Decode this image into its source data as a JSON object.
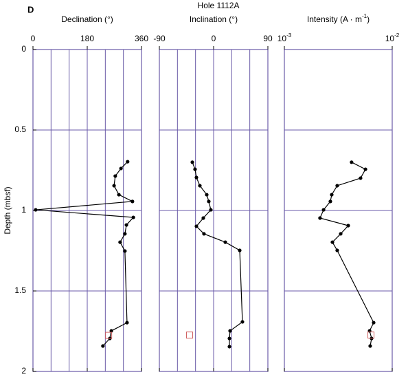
{
  "panel_label": "D",
  "title": "Hole 1112A",
  "chart_data": [
    {
      "type": "line",
      "x_label": "Declination  (°)",
      "xlim": [
        0,
        360
      ],
      "xticks": [
        0,
        180,
        360
      ],
      "xgrid": [
        60,
        120,
        180,
        240,
        300
      ],
      "y_label": "Depth (mbsf)",
      "ylim": [
        0,
        2
      ],
      "yticks": [
        0,
        0.5,
        1,
        1.5,
        2
      ],
      "ygrid": [
        0.5,
        1,
        1.5
      ],
      "color": "#000000",
      "series": [
        {
          "depth": [
            0.697,
            0.739,
            0.786,
            0.846,
            0.902,
            0.944,
            0.996,
            1.043,
            1.09,
            1.145,
            1.197,
            1.252,
            1.697,
            1.748,
            1.795,
            1.842
          ],
          "values": [
            314,
            292,
            273,
            269,
            285,
            330,
            9,
            333,
            310,
            305,
            289,
            305,
            312,
            260,
            255,
            232
          ]
        }
      ],
      "discrete_sample": {
        "depth": 1.776,
        "value": 251,
        "color": "#d06060"
      }
    },
    {
      "type": "line",
      "x_label": "Inclination  (°)",
      "xlim": [
        -90,
        90
      ],
      "xticks": [
        -90,
        0,
        90
      ],
      "xgrid": [
        -60,
        -30,
        0,
        30,
        60
      ],
      "ylim": [
        0,
        2
      ],
      "ygrid": [
        0.5,
        1,
        1.5
      ],
      "color": "#000000",
      "series": [
        {
          "depth": [
            0.7,
            0.744,
            0.795,
            0.846,
            0.902,
            0.944,
            0.996,
            1.047,
            1.098,
            1.145,
            1.197,
            1.248,
            1.692,
            1.748,
            1.795,
            1.846
          ],
          "values": [
            -35.3,
            -30.8,
            -28.5,
            -22.8,
            -11.4,
            -8,
            -4.6,
            -17.1,
            -28.5,
            -16,
            19.4,
            43.3,
            47.8,
            27.3,
            26.2,
            26.2
          ]
        }
      ],
      "discrete_sample": {
        "depth": 1.774,
        "value": -39.9,
        "color": "#d06060"
      }
    },
    {
      "type": "line",
      "x_label": [
        "Intensity (A · m",
        "-1",
        ")"
      ],
      "xscale": "log",
      "xlim": [
        0.001,
        0.01
      ],
      "xticks": [
        {
          "value": 0.001,
          "label": "10",
          "exponent": "-3"
        },
        {
          "value": 0.01,
          "label": "10",
          "exponent": "-2"
        }
      ],
      "ylim": [
        0,
        2
      ],
      "ygrid": [
        0.5,
        1,
        1.5
      ],
      "color": "#000000",
      "series": [
        {
          "depth": [
            0.7,
            0.744,
            0.799,
            0.846,
            0.902,
            0.944,
            0.996,
            1.047,
            1.094,
            1.145,
            1.197,
            1.248,
            1.697,
            1.748,
            1.795,
            1.842
          ],
          "values": [
            0.0042,
            0.00565,
            0.00509,
            0.00309,
            0.00275,
            0.00267,
            0.00231,
            0.00214,
            0.00391,
            0.00333,
            0.00279,
            0.00309,
            0.00673,
            0.00617,
            0.00644,
            0.00625
          ]
        }
      ],
      "discrete_sample": {
        "depth": 1.774,
        "value": 0.00635,
        "color": "#d06060"
      }
    }
  ]
}
